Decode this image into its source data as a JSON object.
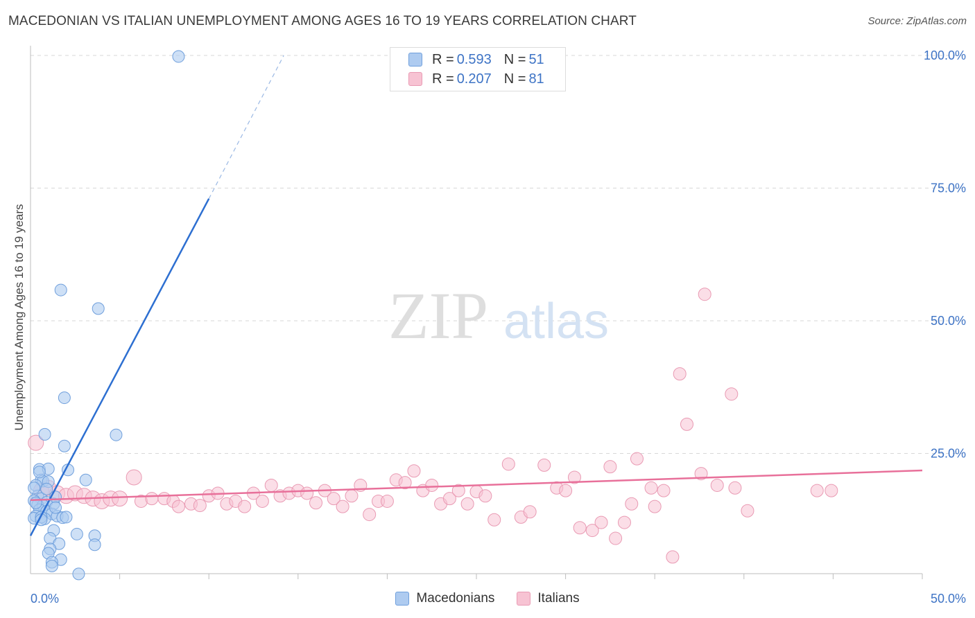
{
  "header": {
    "title": "MACEDONIAN VS ITALIAN UNEMPLOYMENT AMONG AGES 16 TO 19 YEARS CORRELATION CHART",
    "source": "Source: ZipAtlas.com"
  },
  "watermark": {
    "zip": "ZIP",
    "atlas": "atlas"
  },
  "legend": {
    "rows": [
      {
        "r_label": "R =",
        "r_value": "0.593",
        "n_label": "N =",
        "n_value": "51"
      },
      {
        "r_label": "R =",
        "r_value": "0.207",
        "n_label": "N =",
        "n_value": "81"
      }
    ]
  },
  "colors": {
    "macedonians_fill": "#aecbf0",
    "macedonians_stroke": "#6f9fdc",
    "macedonians_line": "#2d6fd1",
    "italians_fill": "#f7c3d3",
    "italians_stroke": "#e99ab3",
    "italians_line": "#e8709a",
    "tick_label": "#3d73c5",
    "grid": "#d7d7d7"
  },
  "chart_data": {
    "type": "scatter",
    "title": "MACEDONIAN VS ITALIAN UNEMPLOYMENT AMONG AGES 16 TO 19 YEARS CORRELATION CHART",
    "xlabel": "",
    "ylabel": "Unemployment Among Ages 16 to 19 years",
    "xlim": [
      0,
      50
    ],
    "ylim": [
      0,
      100
    ],
    "x_tick_labels": [
      "0.0%",
      "50.0%"
    ],
    "y_tick_labels": [
      "100.0%",
      "75.0%",
      "50.0%",
      "25.0%"
    ],
    "y_ticks": [
      100,
      75,
      50,
      25
    ],
    "grid": true,
    "legend_position": "top-center",
    "series": [
      {
        "name": "Macedonians",
        "r": 0.593,
        "n": 51,
        "trend": {
          "x0": 0,
          "y0": 9.5,
          "x1": 10,
          "y1": 73,
          "dash_to_x": 14.2,
          "dash_to_y": 100
        },
        "points": [
          [
            8.3,
            99.8
          ],
          [
            1.7,
            55.8
          ],
          [
            3.8,
            52.3
          ],
          [
            1.9,
            35.5
          ],
          [
            4.8,
            28.5
          ],
          [
            0.8,
            28.6
          ],
          [
            1.9,
            26.4
          ],
          [
            0.5,
            22.0
          ],
          [
            1.0,
            22.1
          ],
          [
            2.1,
            21.9
          ],
          [
            0.6,
            20.0
          ],
          [
            0.7,
            19.8
          ],
          [
            1.0,
            19.7
          ],
          [
            3.1,
            20.0
          ],
          [
            0.3,
            19.0
          ],
          [
            0.4,
            17.0
          ],
          [
            0.6,
            16.5
          ],
          [
            0.9,
            15.8
          ],
          [
            0.2,
            16.1
          ],
          [
            0.4,
            15.3
          ],
          [
            0.7,
            15.2
          ],
          [
            1.3,
            15.5
          ],
          [
            1.4,
            16.8
          ],
          [
            0.5,
            14.4
          ],
          [
            0.9,
            14.1
          ],
          [
            1.2,
            13.6
          ],
          [
            0.3,
            13.2
          ],
          [
            0.8,
            12.7
          ],
          [
            1.5,
            13.2
          ],
          [
            1.8,
            12.9
          ],
          [
            2.0,
            13.0
          ],
          [
            0.2,
            12.8
          ],
          [
            0.6,
            13.0
          ],
          [
            1.3,
            10.5
          ],
          [
            2.6,
            9.8
          ],
          [
            1.1,
            9.0
          ],
          [
            3.6,
            9.5
          ],
          [
            1.6,
            8.0
          ],
          [
            3.6,
            7.8
          ],
          [
            1.1,
            7.0
          ],
          [
            1.0,
            6.2
          ],
          [
            1.7,
            5.0
          ],
          [
            1.2,
            4.5
          ],
          [
            1.2,
            3.8
          ],
          [
            2.7,
            2.3
          ],
          [
            0.2,
            18.5
          ],
          [
            0.5,
            21.5
          ],
          [
            0.9,
            18.3
          ],
          [
            1.4,
            14.8
          ],
          [
            0.3,
            15.7
          ],
          [
            0.6,
            12.5
          ]
        ]
      },
      {
        "name": "Italians",
        "r": 0.207,
        "n": 81,
        "trend": {
          "x0": 0,
          "y0": 16.2,
          "x1": 50,
          "y1": 21.8
        },
        "points": [
          [
            0.3,
            27.0
          ],
          [
            0.6,
            18.0
          ],
          [
            1.0,
            18.5
          ],
          [
            1.5,
            17.5
          ],
          [
            2.0,
            17.0
          ],
          [
            2.5,
            17.5
          ],
          [
            3.0,
            17.0
          ],
          [
            3.5,
            16.5
          ],
          [
            4.0,
            16.0
          ],
          [
            4.5,
            16.5
          ],
          [
            5.0,
            16.5
          ],
          [
            5.8,
            20.5
          ],
          [
            6.2,
            16.0
          ],
          [
            6.8,
            16.5
          ],
          [
            7.5,
            16.5
          ],
          [
            8.0,
            16.0
          ],
          [
            8.3,
            15.0
          ],
          [
            9.0,
            15.5
          ],
          [
            9.5,
            15.2
          ],
          [
            10.0,
            17.0
          ],
          [
            10.5,
            17.5
          ],
          [
            11.0,
            15.5
          ],
          [
            11.5,
            16.0
          ],
          [
            12.0,
            15.0
          ],
          [
            12.5,
            17.5
          ],
          [
            13.0,
            16.0
          ],
          [
            13.5,
            19.0
          ],
          [
            14.0,
            17.0
          ],
          [
            14.5,
            17.5
          ],
          [
            15.0,
            18.0
          ],
          [
            15.5,
            17.5
          ],
          [
            16.0,
            15.7
          ],
          [
            16.5,
            18.0
          ],
          [
            17.0,
            16.5
          ],
          [
            17.5,
            15.0
          ],
          [
            18.0,
            17.0
          ],
          [
            18.5,
            19.0
          ],
          [
            19.0,
            13.5
          ],
          [
            19.5,
            16.0
          ],
          [
            20.0,
            16.0
          ],
          [
            20.5,
            20.0
          ],
          [
            21.0,
            19.5
          ],
          [
            21.5,
            21.7
          ],
          [
            22.0,
            18.0
          ],
          [
            22.5,
            19.0
          ],
          [
            23.0,
            15.5
          ],
          [
            23.5,
            16.5
          ],
          [
            24.0,
            18.0
          ],
          [
            24.5,
            15.5
          ],
          [
            25.0,
            17.8
          ],
          [
            25.5,
            17.0
          ],
          [
            26.0,
            12.5
          ],
          [
            26.8,
            23.0
          ],
          [
            27.5,
            13.0
          ],
          [
            28.0,
            14.0
          ],
          [
            28.8,
            22.8
          ],
          [
            29.5,
            18.5
          ],
          [
            30.0,
            18.0
          ],
          [
            30.5,
            20.5
          ],
          [
            30.8,
            11.0
          ],
          [
            31.5,
            10.5
          ],
          [
            32.0,
            12.0
          ],
          [
            32.5,
            22.5
          ],
          [
            32.8,
            9.0
          ],
          [
            33.3,
            12.0
          ],
          [
            33.7,
            15.5
          ],
          [
            34.0,
            24.0
          ],
          [
            34.8,
            18.5
          ],
          [
            35.0,
            15.0
          ],
          [
            35.5,
            18.0
          ],
          [
            36.0,
            5.5
          ],
          [
            36.4,
            40.0
          ],
          [
            36.8,
            30.5
          ],
          [
            37.6,
            21.2
          ],
          [
            37.8,
            55.0
          ],
          [
            38.5,
            19.0
          ],
          [
            39.3,
            36.2
          ],
          [
            39.5,
            18.5
          ],
          [
            40.2,
            14.2
          ],
          [
            44.1,
            18.0
          ],
          [
            44.9,
            18.0
          ]
        ]
      }
    ]
  },
  "bottom_legend": [
    "Macedonians",
    "Italians"
  ]
}
